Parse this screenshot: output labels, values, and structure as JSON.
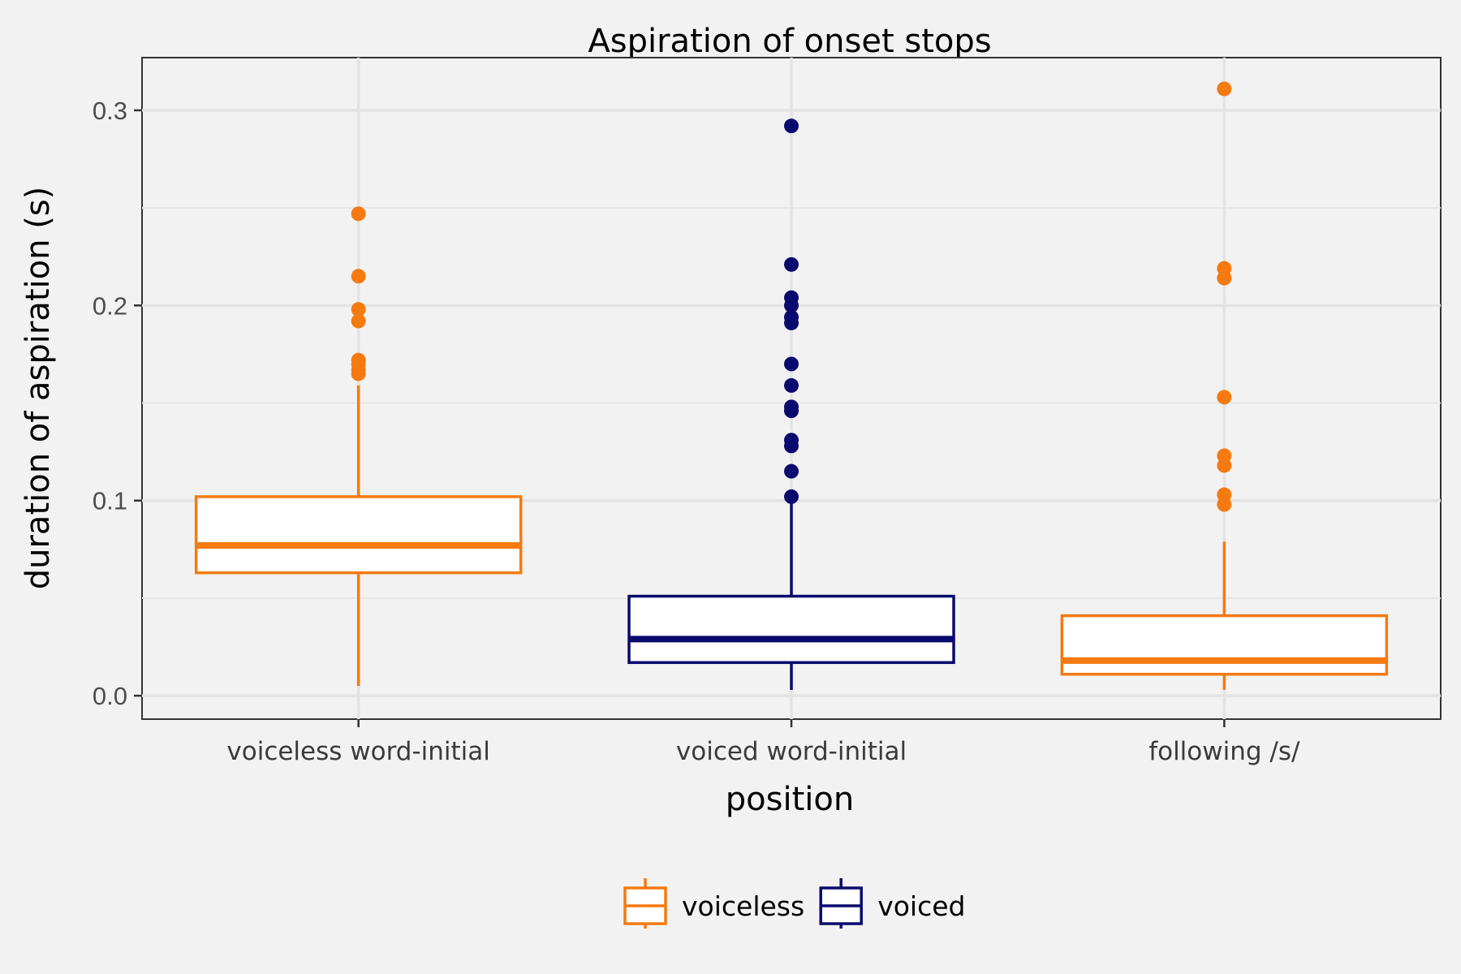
{
  "chart_data": {
    "type": "box",
    "title": "Aspiration of onset stops",
    "xlabel": "position",
    "ylabel": "duration of aspiration (s)",
    "ylim": [
      -0.012,
      0.327
    ],
    "yticks": [
      0.0,
      0.1,
      0.2,
      0.3
    ],
    "ytick_labels": [
      "0.0",
      "0.1",
      "0.2",
      "0.3"
    ],
    "grid": true,
    "legend_position": "bottom",
    "categories": [
      "voiceless word-initial",
      "voiced word-initial",
      "following /s/"
    ],
    "series": [
      {
        "name": "voiceless",
        "color": "#f57a10"
      },
      {
        "name": "voiced",
        "color": "#0a0a6e"
      }
    ],
    "boxes": [
      {
        "category": "voiceless word-initial",
        "group": "voiceless",
        "whisker_low": 0.005,
        "q1": 0.063,
        "median": 0.077,
        "q3": 0.102,
        "whisker_high": 0.159,
        "outliers": [
          0.247,
          0.215,
          0.198,
          0.192,
          0.172,
          0.17,
          0.167,
          0.165
        ]
      },
      {
        "category": "voiced word-initial",
        "group": "voiced",
        "whisker_low": 0.003,
        "q1": 0.017,
        "median": 0.029,
        "q3": 0.051,
        "whisker_high": 0.101,
        "outliers": [
          0.292,
          0.221,
          0.204,
          0.2,
          0.194,
          0.191,
          0.17,
          0.159,
          0.148,
          0.146,
          0.131,
          0.128,
          0.115,
          0.102
        ]
      },
      {
        "category": "following /s/",
        "group": "voiceless",
        "whisker_low": 0.003,
        "q1": 0.011,
        "median": 0.018,
        "q3": 0.041,
        "whisker_high": 0.079,
        "outliers": [
          0.311,
          0.219,
          0.214,
          0.153,
          0.123,
          0.118,
          0.103,
          0.098
        ]
      }
    ]
  }
}
